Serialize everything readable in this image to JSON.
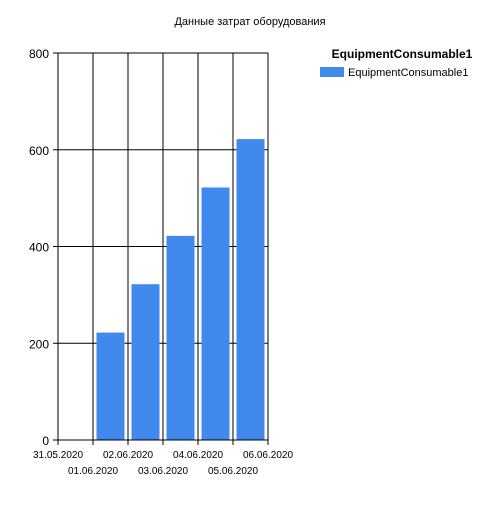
{
  "chart_data": {
    "type": "bar",
    "title": "Данные затрат оборудования",
    "legend_title": "EquipmentConsumable1",
    "legend_placement": "top-right",
    "grid": true,
    "x_ticks": [
      "31.05.2020",
      "01.06.2020",
      "02.06.2020",
      "03.06.2020",
      "04.06.2020",
      "05.06.2020",
      "06.06.2020"
    ],
    "y_ticks": [
      0,
      200,
      400,
      600,
      800
    ],
    "ylim": [
      0,
      800
    ],
    "categories": [
      "01.06.2020",
      "02.06.2020",
      "03.06.2020",
      "04.06.2020",
      "05.06.2020"
    ],
    "series": [
      {
        "name": "EquipmentConsumable1",
        "color": "#4189EC",
        "values": [
          222,
          322,
          422,
          522,
          622
        ]
      }
    ]
  }
}
